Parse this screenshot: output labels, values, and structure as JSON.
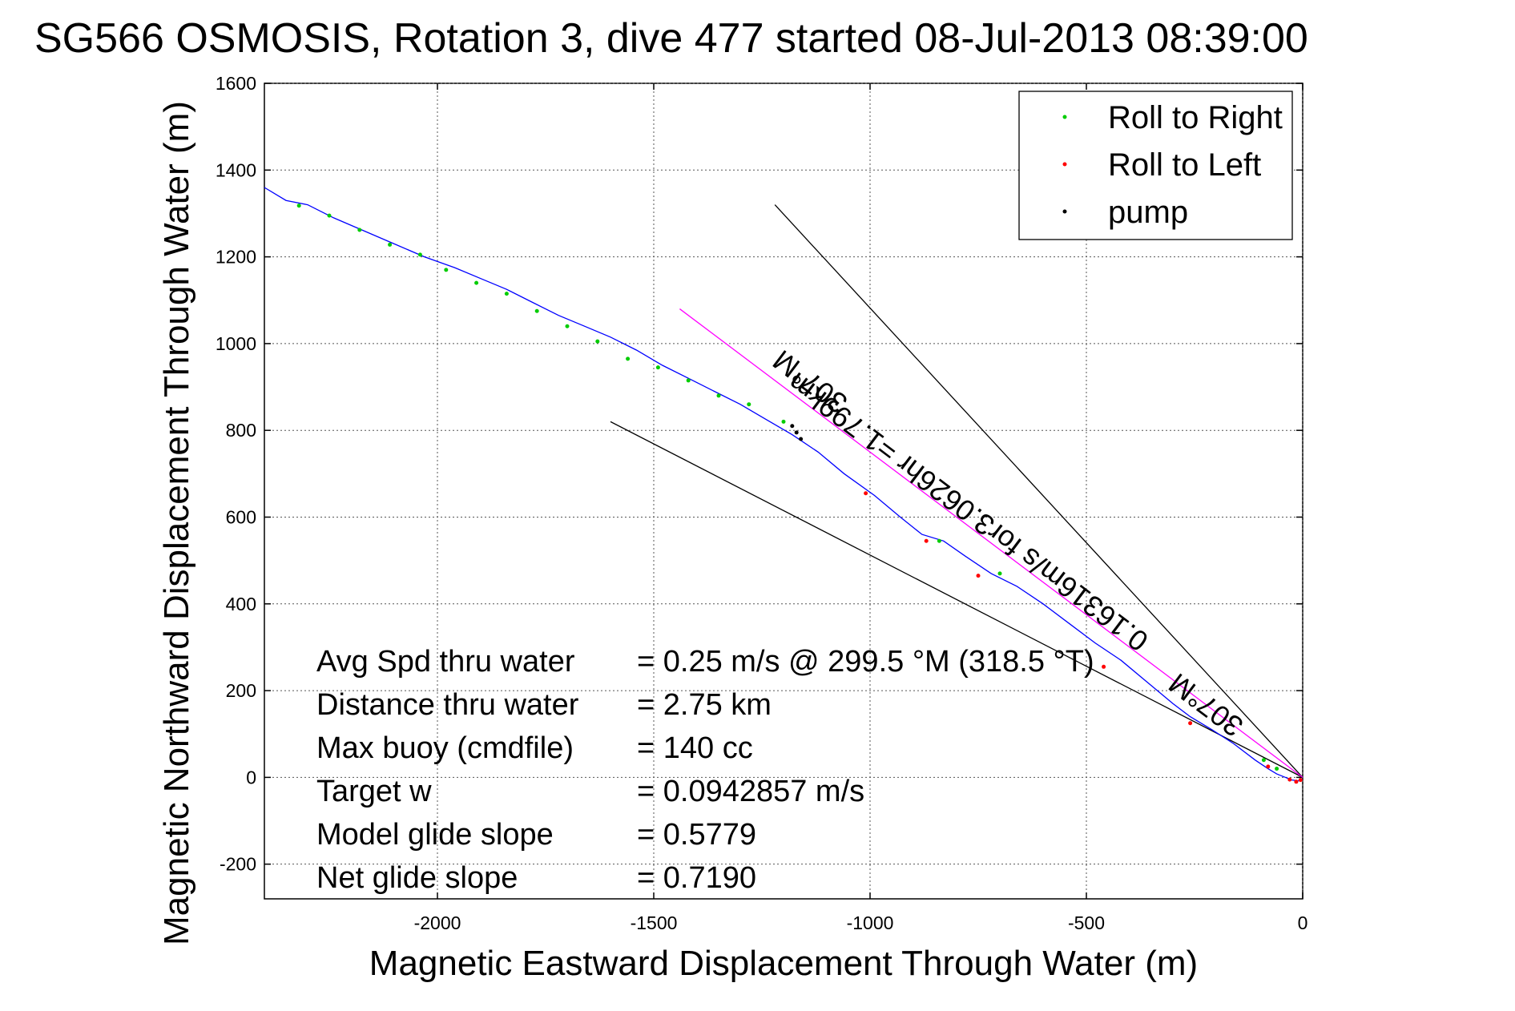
{
  "chart_data": {
    "type": "line",
    "title": "SG566 OSMOSIS, Rotation 3, dive 477 started 08-Jul-2013 08:39:00",
    "xlabel": "Magnetic Eastward Displacement Through Water (m)",
    "ylabel": "Magnetic Northward Displacement Through Water (m)",
    "xlim": [
      -2400,
      0
    ],
    "ylim": [
      -280,
      1600
    ],
    "xticks": [
      -2000,
      -1500,
      -1000,
      -500,
      0
    ],
    "yticks": [
      -200,
      0,
      200,
      400,
      600,
      800,
      1000,
      1200,
      1400,
      1600
    ],
    "grid": true,
    "legend_position": "top-right",
    "legend": [
      {
        "label": "Roll to Right",
        "color": "#00cc00"
      },
      {
        "label": "Roll to Left",
        "color": "#ff0000"
      },
      {
        "label": "pump",
        "color": "#000000"
      }
    ],
    "track": {
      "color": "#0000ff",
      "x": [
        0,
        -10,
        -25,
        -45,
        -60,
        -80,
        -110,
        -160,
        -210,
        -260,
        -300,
        -360,
        -420,
        -480,
        -540,
        -600,
        -660,
        -720,
        -780,
        -830,
        -880,
        -930,
        -990,
        -1060,
        -1120,
        -1180,
        -1240,
        -1300,
        -1360,
        -1420,
        -1480,
        -1540,
        -1600,
        -1660,
        -1720,
        -1780,
        -1840,
        -1900,
        -1960,
        -2030,
        -2100,
        -2170,
        -2240,
        -2300,
        -2350,
        -2400
      ],
      "y": [
        -5,
        -8,
        -6,
        2,
        8,
        20,
        40,
        78,
        110,
        140,
        170,
        220,
        270,
        310,
        355,
        400,
        440,
        470,
        510,
        545,
        560,
        600,
        650,
        700,
        750,
        790,
        825,
        860,
        890,
        920,
        950,
        985,
        1015,
        1040,
        1065,
        1095,
        1125,
        1150,
        1175,
        1200,
        1230,
        1260,
        1290,
        1320,
        1330,
        1360
      ]
    },
    "roll_right_points": {
      "x": [
        -2320,
        -2250,
        -2180,
        -2110,
        -2040,
        -1980,
        -1910,
        -1840,
        -1770,
        -1700,
        -1630,
        -1560,
        -1490,
        -1420,
        -1350,
        -1280,
        -1200,
        -840,
        -700,
        -90,
        -60
      ],
      "y": [
        1318,
        1295,
        1262,
        1228,
        1205,
        1170,
        1140,
        1115,
        1075,
        1040,
        1005,
        965,
        945,
        915,
        880,
        860,
        820,
        545,
        470,
        40,
        20
      ]
    },
    "roll_left_points": {
      "x": [
        -1010,
        -870,
        -750,
        -460,
        -260,
        -80,
        -30,
        -15,
        -5
      ],
      "y": [
        655,
        545,
        465,
        255,
        125,
        25,
        -5,
        -10,
        -6
      ]
    },
    "pump_points": {
      "x": [
        -1180,
        -1170,
        -1160
      ],
      "y": [
        810,
        795,
        780
      ]
    },
    "reference_lines": [
      {
        "name": "bearing-line-upper",
        "color": "#000000",
        "x": [
          0,
          -1220
        ],
        "y": [
          0,
          1320
        ]
      },
      {
        "name": "bearing-line-lower",
        "color": "#000000",
        "x": [
          0,
          -1600
        ],
        "y": [
          0,
          820
        ]
      },
      {
        "name": "bearing-line-target",
        "color": "#ff00ff",
        "x": [
          0,
          -1440
        ],
        "y": [
          0,
          1080
        ]
      }
    ],
    "annotations": [
      {
        "text": "307°M",
        "x": -1125,
        "y": 930,
        "angle": 37
      },
      {
        "text": "0.16316m/s for3.0626hr =1.799km",
        "x": -760,
        "y": 630,
        "angle": 37
      },
      {
        "text": "307°M",
        "x": -210,
        "y": 185,
        "angle": 37
      }
    ],
    "stats": [
      {
        "label": "Avg Spd thru water",
        "value": "=  0.25 m/s @ 299.5 °M (318.5 °T)"
      },
      {
        "label": "Distance thru water",
        "value": "=  2.75 km"
      },
      {
        "label": "Max buoy (cmdfile)",
        "value": "= 140 cc"
      },
      {
        "label": "Target w",
        "value": "= 0.0942857 m/s"
      },
      {
        "label": "Model glide slope",
        "value": "= 0.5779"
      },
      {
        "label": "Net glide slope",
        "value": "= 0.7190"
      }
    ]
  }
}
